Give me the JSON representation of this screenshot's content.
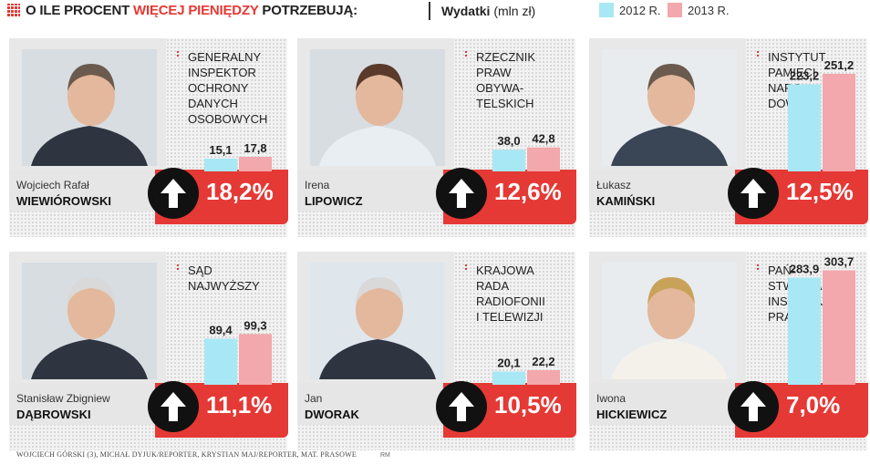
{
  "header": {
    "title_prefix": "O ILE PROCENT ",
    "title_highlight": "WIĘCEJ PIENIĘDZY",
    "title_suffix": " POTRZEBUJĄ:",
    "wydatki_label": "Wydatki",
    "wydatki_unit": "(mln zł)",
    "legend": [
      {
        "label": "2012 R.",
        "color": "#a8e8f4"
      },
      {
        "label": "2013 R.",
        "color": "#f2a8ac"
      }
    ]
  },
  "colors": {
    "accent": "#e53935",
    "bar2012": "#a8e8f4",
    "bar2013": "#f2a8ac"
  },
  "chart_data": {
    "type": "bar",
    "series": [
      {
        "name": "2012 R."
      },
      {
        "name": "2013 R."
      }
    ],
    "unit": "mln zł",
    "panels": [
      {
        "first_name": "Wojciech Rafał",
        "last_name": "WIEWIÓROWSKI",
        "institution_lines": [
          "GENERALNY",
          "INSPEKTOR",
          "OCHRONY",
          "DANYCH",
          "OSOBOWYCH"
        ],
        "v2012": 15.1,
        "v2013": 17.8,
        "label2012": "15,1",
        "label2013": "17,8",
        "pct": "18,2%"
      },
      {
        "first_name": "Irena",
        "last_name": "LIPOWICZ",
        "institution_lines": [
          "RZECZNIK",
          "PRAW",
          "OBYWA-",
          "TELSKICH"
        ],
        "v2012": 38.0,
        "v2013": 42.8,
        "label2012": "38,0",
        "label2013": "42,8",
        "pct": "12,6%"
      },
      {
        "first_name": "Łukasz",
        "last_name": "KAMIŃSKI",
        "institution_lines": [
          "INSTYTUT",
          "PAMIĘCI",
          "NARO-",
          "DOWEJ"
        ],
        "v2012": 223.2,
        "v2013": 251.2,
        "label2012": "223,2",
        "label2013": "251,2",
        "pct": "12,5%"
      },
      {
        "first_name": "Stanisław Zbigniew",
        "last_name": "DĄBROWSKI",
        "institution_lines": [
          "SĄD",
          "NAJWYŻSZY"
        ],
        "v2012": 89.4,
        "v2013": 99.3,
        "label2012": "89,4",
        "label2013": "99,3",
        "pct": "11,1%"
      },
      {
        "first_name": "Jan",
        "last_name": "DWORAK",
        "institution_lines": [
          "KRAJOWA",
          "RADA",
          "RADIOFONII",
          "I TELEWIZJI"
        ],
        "v2012": 20.1,
        "v2013": 22.2,
        "label2012": "20,1",
        "label2013": "22,2",
        "pct": "10,5%"
      },
      {
        "first_name": "Iwona",
        "last_name": "HICKIEWICZ",
        "institution_lines": [
          "PAŃ-",
          "STWOWA",
          "INSPEKCJA",
          "PRACY"
        ],
        "v2012": 283.9,
        "v2013": 303.7,
        "label2012": "283,9",
        "label2013": "303,7",
        "pct": "7,0%"
      }
    ]
  },
  "footer": {
    "credits": "WOJCIECH GÓRSKI (3), MICHAŁ DYJUK/REPORTER, KRYSTIAN MAJ/REPORTER, MAT. PRASOWE",
    "tag": "RM"
  }
}
